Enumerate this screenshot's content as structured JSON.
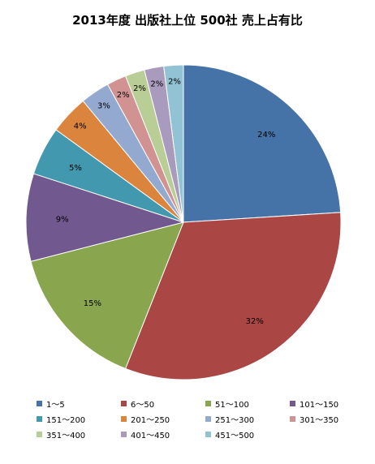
{
  "title": "2013年度  出版社上位 500社  売上占有比",
  "chart_data": {
    "type": "pie",
    "title": "2013年度  出版社上位 500社  売上占有比",
    "start_angle": "top",
    "direction": "clockwise",
    "legend_position": "bottom",
    "slices": [
      {
        "label": "1～5",
        "value": 24,
        "display": "24%",
        "color": "#4573A7"
      },
      {
        "label": "6～50",
        "value": 32,
        "display": "32%",
        "color": "#AA4644"
      },
      {
        "label": "51～100",
        "value": 15,
        "display": "15%",
        "color": "#89A54E"
      },
      {
        "label": "101～150",
        "value": 9,
        "display": "9%",
        "color": "#71588F"
      },
      {
        "label": "151～200",
        "value": 5,
        "display": "5%",
        "color": "#4298AF"
      },
      {
        "label": "201～250",
        "value": 4,
        "display": "4%",
        "color": "#DB843D"
      },
      {
        "label": "251～300",
        "value": 3,
        "display": "3%",
        "color": "#93A9D0"
      },
      {
        "label": "301～350",
        "value": 2,
        "display": "2%",
        "color": "#D09392"
      },
      {
        "label": "351～400",
        "value": 2,
        "display": "2%",
        "color": "#B9CD96"
      },
      {
        "label": "401～450",
        "value": 2,
        "display": "2%",
        "color": "#A99BBD"
      },
      {
        "label": "451～500",
        "value": 2,
        "display": "2%",
        "color": "#92C3D4"
      }
    ]
  }
}
